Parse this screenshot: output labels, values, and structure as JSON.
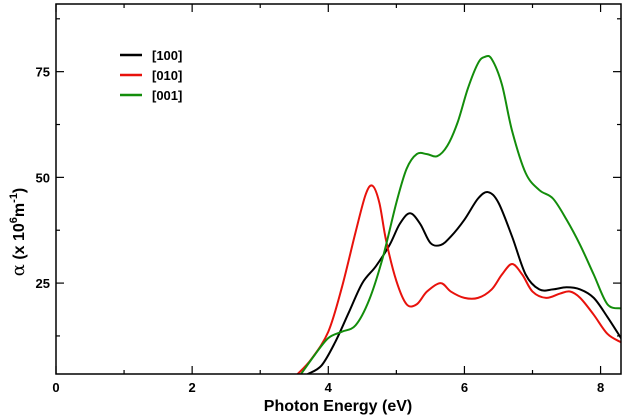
{
  "chart_data": {
    "type": "line",
    "xlabel": "Photon Energy (eV)",
    "ylabel": {
      "symbol": "α",
      "prefix": " (x 10",
      "exp1": "6",
      "mid": "m",
      "exp2": "-1",
      "suffix": ")"
    },
    "xlim": [
      0,
      8.3
    ],
    "ylim": [
      3.5,
      91
    ],
    "xticks": [
      0,
      2,
      4,
      6,
      8
    ],
    "xtick_labels": [
      "0",
      "2",
      "4",
      "6",
      "8"
    ],
    "yticks": [
      25,
      50,
      75
    ],
    "ytick_labels": [
      "25",
      "50",
      "75"
    ],
    "legend_position": "top-left",
    "series": [
      {
        "name": "[100]",
        "color": "#000000",
        "x": [
          3.7,
          3.9,
          4.1,
          4.3,
          4.5,
          4.7,
          4.9,
          5.05,
          5.2,
          5.35,
          5.5,
          5.65,
          5.8,
          6.0,
          6.2,
          6.35,
          6.5,
          6.7,
          6.9,
          7.1,
          7.3,
          7.5,
          7.7,
          7.9,
          8.1,
          8.3
        ],
        "y": [
          3.5,
          5.5,
          11,
          18,
          25,
          29,
          34,
          39,
          41.5,
          39,
          34.5,
          34,
          36,
          40,
          45,
          46.5,
          44,
          36,
          27,
          23.5,
          23.5,
          24,
          23.5,
          21.5,
          17,
          12
        ]
      },
      {
        "name": "[010]",
        "color": "#e8120c",
        "x": [
          3.55,
          3.75,
          4.0,
          4.2,
          4.4,
          4.55,
          4.65,
          4.75,
          4.85,
          5.0,
          5.15,
          5.3,
          5.45,
          5.65,
          5.8,
          6.0,
          6.2,
          6.4,
          6.55,
          6.7,
          6.85,
          7.0,
          7.2,
          7.4,
          7.55,
          7.7,
          7.9,
          8.1,
          8.3
        ],
        "y": [
          3.5,
          7,
          13.5,
          24,
          37,
          46,
          48,
          44,
          35,
          25.5,
          20,
          20,
          23,
          25,
          23,
          21.5,
          21.5,
          23.5,
          27,
          29.5,
          27,
          23,
          21.5,
          22.5,
          23,
          21.5,
          17.5,
          13,
          11
        ]
      },
      {
        "name": "[001]",
        "color": "#138d0b",
        "x": [
          3.6,
          3.8,
          4.0,
          4.2,
          4.4,
          4.6,
          4.8,
          5.0,
          5.15,
          5.3,
          5.45,
          5.6,
          5.75,
          5.9,
          6.05,
          6.2,
          6.3,
          6.4,
          6.55,
          6.7,
          6.9,
          7.1,
          7.3,
          7.5,
          7.7,
          7.9,
          8.1,
          8.3
        ],
        "y": [
          3.5,
          8,
          12,
          13.5,
          15,
          21,
          31,
          44,
          52,
          55.5,
          55.5,
          55,
          57.5,
          63,
          71,
          77,
          78.5,
          78,
          72,
          61,
          51,
          47,
          45,
          40,
          34,
          27,
          20,
          19
        ]
      }
    ]
  }
}
